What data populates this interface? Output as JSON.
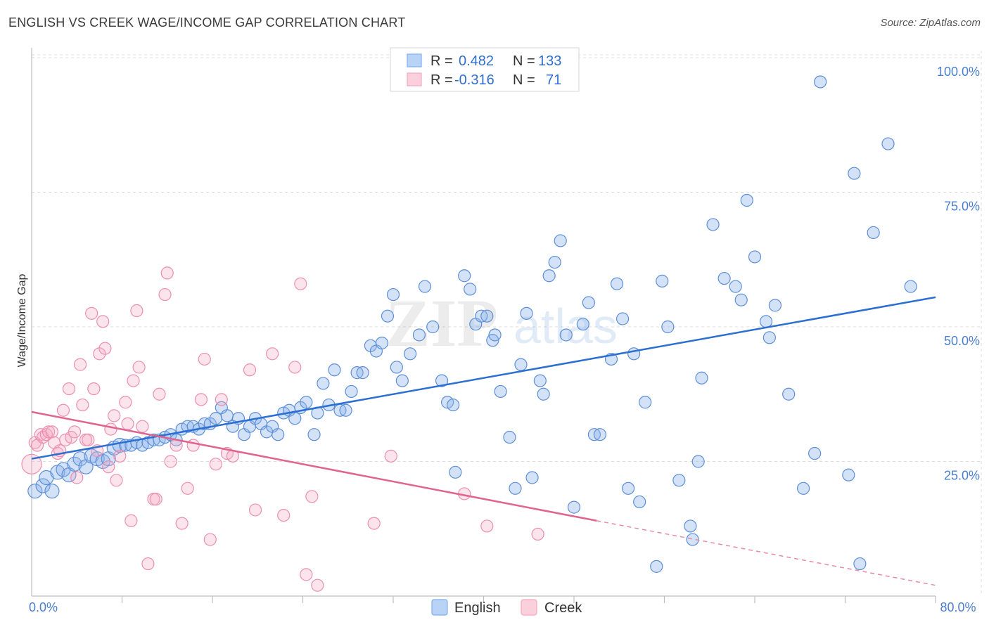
{
  "chart_data": {
    "type": "scatter",
    "title": "ENGLISH VS CREEK WAGE/INCOME GAP CORRELATION CHART",
    "source": "Source: ZipAtlas.com",
    "xlabel": "",
    "ylabel": "Wage/Income Gap",
    "xlim": [
      0,
      80
    ],
    "ylim": [
      0,
      100
    ],
    "x_tick_labels": [
      {
        "value": 0,
        "label": "0.0%"
      },
      {
        "value": 80,
        "label": "80.0%"
      }
    ],
    "x_minor_ticks": [
      8,
      16,
      24,
      32,
      40,
      48,
      56,
      64,
      72,
      80
    ],
    "y_ticks": [
      {
        "value": 25,
        "label": "25.0%"
      },
      {
        "value": 50,
        "label": "50.0%"
      },
      {
        "value": 75,
        "label": "75.0%"
      },
      {
        "value": 100,
        "label": "100.0%"
      }
    ],
    "grid": true,
    "watermark": {
      "zip": "ZIP",
      "atlas": "atlas"
    },
    "legend": {
      "rows": [
        {
          "r_label": "R =",
          "r_value": "0.482",
          "n_label": "N =",
          "n_value": "133",
          "color": "#7fb0ec"
        },
        {
          "r_label": "R =",
          "r_value": "-0.316",
          "n_label": "N =",
          "n_value": "71",
          "color": "#f5a8c0"
        }
      ]
    },
    "series": [
      {
        "name": "English",
        "color": "#5d8fd8",
        "trend": {
          "x0": 0,
          "y0": 25.5,
          "x1": 80,
          "y1": 55.5
        },
        "points": [
          [
            0.3,
            19.5
          ],
          [
            1.0,
            20.5
          ],
          [
            1.3,
            22
          ],
          [
            1.8,
            19.5
          ],
          [
            2.3,
            23
          ],
          [
            2.8,
            23.5
          ],
          [
            3.3,
            22.5
          ],
          [
            3.8,
            24.5
          ],
          [
            4.3,
            25.5
          ],
          [
            4.8,
            24
          ],
          [
            5.3,
            26
          ],
          [
            5.8,
            25.5
          ],
          [
            6.3,
            25
          ],
          [
            6.8,
            25.5
          ],
          [
            7.3,
            27.5
          ],
          [
            7.8,
            28
          ],
          [
            8.3,
            28
          ],
          [
            8.8,
            28
          ],
          [
            9.3,
            28.5
          ],
          [
            9.8,
            28
          ],
          [
            10.3,
            28.5
          ],
          [
            10.8,
            29
          ],
          [
            11.3,
            29
          ],
          [
            11.8,
            29.5
          ],
          [
            12.3,
            30
          ],
          [
            12.8,
            29
          ],
          [
            13.3,
            31
          ],
          [
            13.8,
            31.5
          ],
          [
            14.3,
            31.5
          ],
          [
            14.8,
            31
          ],
          [
            15.3,
            32
          ],
          [
            15.8,
            32
          ],
          [
            16.3,
            33
          ],
          [
            16.8,
            35
          ],
          [
            17.3,
            33.5
          ],
          [
            17.8,
            31.5
          ],
          [
            18.3,
            33
          ],
          [
            18.8,
            30
          ],
          [
            19.3,
            31.5
          ],
          [
            19.8,
            33
          ],
          [
            20.3,
            32
          ],
          [
            20.8,
            30.5
          ],
          [
            21.3,
            31.5
          ],
          [
            21.8,
            30
          ],
          [
            22.3,
            34
          ],
          [
            22.8,
            34.5
          ],
          [
            23.3,
            33
          ],
          [
            23.8,
            35
          ],
          [
            24.3,
            36
          ],
          [
            25,
            30
          ],
          [
            25.3,
            34
          ],
          [
            25.8,
            39.5
          ],
          [
            26.3,
            35.5
          ],
          [
            26.8,
            42
          ],
          [
            27.3,
            34.5
          ],
          [
            27.8,
            34.5
          ],
          [
            28.3,
            38
          ],
          [
            28.8,
            41.5
          ],
          [
            29.3,
            41.5
          ],
          [
            30,
            46.5
          ],
          [
            30.5,
            45.5
          ],
          [
            31,
            47
          ],
          [
            31.5,
            52
          ],
          [
            32,
            56
          ],
          [
            32.3,
            42.5
          ],
          [
            32.8,
            40
          ],
          [
            33.5,
            45
          ],
          [
            34.3,
            48.5
          ],
          [
            34.8,
            57.5
          ],
          [
            35.5,
            50
          ],
          [
            36.3,
            40
          ],
          [
            36.8,
            36
          ],
          [
            37.3,
            35.5
          ],
          [
            37.5,
            23
          ],
          [
            38.3,
            59.5
          ],
          [
            38.8,
            57
          ],
          [
            39.3,
            50.5
          ],
          [
            39.8,
            52
          ],
          [
            40.3,
            52
          ],
          [
            40.8,
            47.5
          ],
          [
            41,
            48.5
          ],
          [
            41.5,
            38
          ],
          [
            42.3,
            29.5
          ],
          [
            42.8,
            20
          ],
          [
            43.3,
            43
          ],
          [
            43.8,
            52.5
          ],
          [
            44.3,
            22
          ],
          [
            45,
            40
          ],
          [
            45.3,
            37.5
          ],
          [
            45.8,
            59.5
          ],
          [
            46.3,
            62
          ],
          [
            46.8,
            66
          ],
          [
            47.3,
            48.5
          ],
          [
            48,
            16.5
          ],
          [
            48.8,
            50.5
          ],
          [
            49.3,
            54.5
          ],
          [
            49.8,
            30
          ],
          [
            50.3,
            30
          ],
          [
            51.3,
            44
          ],
          [
            51.8,
            58
          ],
          [
            52.3,
            51.5
          ],
          [
            52.8,
            20
          ],
          [
            53.3,
            45
          ],
          [
            53.8,
            17.5
          ],
          [
            54.3,
            36
          ],
          [
            55.3,
            5.5
          ],
          [
            55.8,
            58.5
          ],
          [
            56.3,
            50
          ],
          [
            57.3,
            21.5
          ],
          [
            58.3,
            13
          ],
          [
            58.5,
            10.5
          ],
          [
            59,
            25
          ],
          [
            59.3,
            40.5
          ],
          [
            60.3,
            69
          ],
          [
            61.3,
            59
          ],
          [
            62.3,
            57.5
          ],
          [
            62.8,
            55
          ],
          [
            63.3,
            73.5
          ],
          [
            64,
            63
          ],
          [
            65,
            51
          ],
          [
            65.3,
            48
          ],
          [
            65.8,
            54
          ],
          [
            67,
            37.5
          ],
          [
            68.3,
            20
          ],
          [
            69.3,
            26.5
          ],
          [
            69.8,
            95.5
          ],
          [
            72.3,
            22.5
          ],
          [
            72.8,
            78.5
          ],
          [
            73.3,
            6
          ],
          [
            74.5,
            67.5
          ],
          [
            75.8,
            84
          ],
          [
            77.8,
            57.5
          ]
        ]
      },
      {
        "name": "Creek",
        "color": "#ec8fb0",
        "trend": {
          "x0": 0,
          "y0": 34.2,
          "x1": 50,
          "y1": 14
        },
        "trend_dashed": {
          "x0": 50,
          "y0": 14,
          "x1": 80,
          "y1": 2
        },
        "points": [
          [
            0,
            24.5
          ],
          [
            0.3,
            28.5
          ],
          [
            0.5,
            28
          ],
          [
            0.8,
            30
          ],
          [
            1.0,
            29.5
          ],
          [
            1.3,
            30
          ],
          [
            1.5,
            30.5
          ],
          [
            1.8,
            30.5
          ],
          [
            2.0,
            28.5
          ],
          [
            2.3,
            26.5
          ],
          [
            2.5,
            27
          ],
          [
            2.8,
            34.5
          ],
          [
            3.0,
            29
          ],
          [
            3.3,
            38.5
          ],
          [
            3.5,
            29.5
          ],
          [
            3.8,
            30.5
          ],
          [
            4.0,
            22
          ],
          [
            4.3,
            43
          ],
          [
            4.5,
            35.5
          ],
          [
            4.8,
            29
          ],
          [
            5.0,
            29
          ],
          [
            5.3,
            52.5
          ],
          [
            5.5,
            38.5
          ],
          [
            5.8,
            27
          ],
          [
            6,
            45
          ],
          [
            6.3,
            51
          ],
          [
            6.5,
            46
          ],
          [
            6.8,
            24
          ],
          [
            7,
            31
          ],
          [
            7.3,
            33.5
          ],
          [
            7.5,
            21.5
          ],
          [
            7.8,
            26
          ],
          [
            8.3,
            36
          ],
          [
            8.5,
            32
          ],
          [
            8.8,
            14
          ],
          [
            9.0,
            40
          ],
          [
            9.3,
            53
          ],
          [
            9.5,
            42.5
          ],
          [
            9.8,
            31.5
          ],
          [
            10.3,
            6
          ],
          [
            10.8,
            18
          ],
          [
            11,
            18
          ],
          [
            11.3,
            37.5
          ],
          [
            11.8,
            56
          ],
          [
            12,
            60
          ],
          [
            12.3,
            25
          ],
          [
            12.8,
            28
          ],
          [
            13.3,
            13.5
          ],
          [
            13.8,
            20
          ],
          [
            14.3,
            28
          ],
          [
            15,
            36.5
          ],
          [
            15.3,
            44
          ],
          [
            15.8,
            10.5
          ],
          [
            16.3,
            24.5
          ],
          [
            16.8,
            36.5
          ],
          [
            17.3,
            26.5
          ],
          [
            17.8,
            26
          ],
          [
            19.3,
            42
          ],
          [
            19.8,
            16
          ],
          [
            21.3,
            45
          ],
          [
            22.3,
            15
          ],
          [
            23.3,
            42.5
          ],
          [
            23.8,
            58
          ],
          [
            24.3,
            4
          ],
          [
            24.8,
            18.5
          ],
          [
            25.3,
            2
          ],
          [
            30.3,
            13.5
          ],
          [
            31.8,
            26
          ],
          [
            38.3,
            19
          ],
          [
            40.3,
            13
          ],
          [
            44.8,
            11.5
          ]
        ]
      }
    ]
  }
}
